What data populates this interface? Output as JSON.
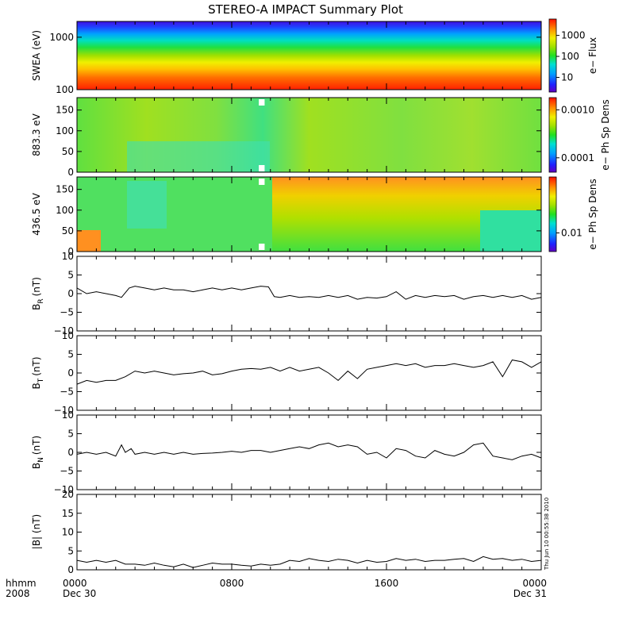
{
  "title": "STEREO-A IMPACT Summary Plot",
  "timestamp": "Thu Jun 10 00:55:38 2010",
  "x_axis": {
    "corner_labels": [
      "hhmm",
      "2008"
    ],
    "ticks": [
      {
        "hours": 0,
        "lines": [
          "0000",
          "Dec 30"
        ]
      },
      {
        "hours": 8,
        "lines": [
          "0800"
        ]
      },
      {
        "hours": 16,
        "lines": [
          "1600"
        ]
      },
      {
        "hours": 24,
        "lines": [
          "0000",
          "Dec 31"
        ]
      }
    ],
    "range_hours": [
      0,
      24
    ],
    "minor_step_hours": 1
  },
  "chart_data": [
    {
      "type": "heatmap",
      "id": "swea",
      "ylabel": "SWEA (eV)",
      "yscale": "log",
      "ylim": [
        100,
        2000
      ],
      "yticks": [
        {
          "v": 100,
          "t": "100"
        },
        {
          "v": 1000,
          "t": "1000"
        }
      ],
      "colorbar": {
        "label": "e− Flux",
        "scale": "log",
        "range": [
          2,
          6000
        ],
        "ticks": [
          {
            "v": 10,
            "t": "10"
          },
          {
            "v": 100,
            "t": "100"
          },
          {
            "v": 1000,
            "t": "1000"
          }
        ]
      },
      "description_values": {
        "top_level_color": "blue",
        "bottom_level_color": "red"
      }
    },
    {
      "type": "heatmap",
      "id": "pad883",
      "ylabel": "883.3 eV",
      "ylim": [
        0,
        180
      ],
      "yticks": [
        {
          "v": 0,
          "t": "0"
        },
        {
          "v": 50,
          "t": "50"
        },
        {
          "v": 100,
          "t": "100"
        },
        {
          "v": 150,
          "t": "150"
        }
      ],
      "colorbar": {
        "label": "e− Ph Sp Dens",
        "scale": "log",
        "range": [
          5e-05,
          0.0018
        ],
        "ticks": [
          {
            "v": 0.0001,
            "t": "0.0001"
          },
          {
            "v": 0.001,
            "t": "0.0010"
          }
        ]
      },
      "data_gap_hours": [
        9.4,
        9.7
      ]
    },
    {
      "type": "heatmap",
      "id": "pad436",
      "ylabel": "436.5 eV",
      "ylim": [
        0,
        180
      ],
      "yticks": [
        {
          "v": 0,
          "t": "0"
        },
        {
          "v": 50,
          "t": "50"
        },
        {
          "v": 100,
          "t": "100"
        },
        {
          "v": 150,
          "t": "150"
        }
      ],
      "colorbar": {
        "label": "e− Ph Sp Dens",
        "scale": "log",
        "range": [
          0.005,
          0.08
        ],
        "ticks": [
          {
            "v": 0.01,
            "t": "0.01"
          }
        ]
      },
      "data_gap_hours": [
        9.4,
        9.7
      ]
    },
    {
      "type": "line",
      "id": "br",
      "ylabel": "B",
      "ylabel_sub": "R",
      "ylabel_unit": "(nT)",
      "ylim": [
        -10,
        10
      ],
      "yticks": [
        {
          "v": -10,
          "t": "−10"
        },
        {
          "v": -5,
          "t": "−5"
        },
        {
          "v": 0,
          "t": "0"
        },
        {
          "v": 5,
          "t": "5"
        },
        {
          "v": 10,
          "t": "10"
        }
      ],
      "x": [
        0,
        0.5,
        1,
        1.5,
        2,
        2.3,
        2.7,
        3,
        3.5,
        4,
        4.5,
        5,
        5.5,
        6,
        6.5,
        7,
        7.5,
        8,
        8.5,
        9,
        9.5,
        9.9,
        10.2,
        10.5,
        11,
        11.5,
        12,
        12.5,
        13,
        13.5,
        14,
        14.5,
        15,
        15.5,
        16,
        16.5,
        17,
        17.5,
        18,
        18.5,
        19,
        19.5,
        20,
        20.5,
        21,
        21.5,
        22,
        22.5,
        23,
        23.5,
        24
      ],
      "y": [
        1.5,
        0,
        0.5,
        0,
        -0.5,
        -1,
        1.5,
        2,
        1.5,
        1,
        1.5,
        1,
        1,
        0.5,
        1,
        1.5,
        1,
        1.5,
        1,
        1.5,
        2,
        1.8,
        -0.8,
        -1,
        -0.5,
        -1,
        -0.8,
        -1,
        -0.5,
        -1,
        -0.5,
        -1.5,
        -1,
        -1.2,
        -0.8,
        0.5,
        -1.5,
        -0.5,
        -1,
        -0.5,
        -0.8,
        -0.5,
        -1.5,
        -0.8,
        -0.5,
        -1,
        -0.5,
        -1,
        -0.5,
        -1.5,
        -1
      ]
    },
    {
      "type": "line",
      "id": "bt",
      "ylabel": "B",
      "ylabel_sub": "T",
      "ylabel_unit": "(nT)",
      "ylim": [
        -10,
        10
      ],
      "yticks": [
        {
          "v": -10,
          "t": "−10"
        },
        {
          "v": -5,
          "t": "−5"
        },
        {
          "v": 0,
          "t": "0"
        },
        {
          "v": 5,
          "t": "5"
        },
        {
          "v": 10,
          "t": "10"
        }
      ],
      "x": [
        0,
        0.5,
        1,
        1.5,
        2,
        2.5,
        3,
        3.5,
        4,
        4.5,
        5,
        5.5,
        6,
        6.5,
        7,
        7.5,
        8,
        8.5,
        9,
        9.5,
        10,
        10.5,
        11,
        11.5,
        12,
        12.5,
        13,
        13.5,
        14,
        14.5,
        15,
        15.5,
        16,
        16.5,
        17,
        17.5,
        18,
        18.5,
        19,
        19.5,
        20,
        20.5,
        21,
        21.5,
        22,
        22.5,
        23,
        23.5,
        24
      ],
      "y": [
        -3,
        -2,
        -2.5,
        -2,
        -2,
        -1,
        0.5,
        0,
        0.5,
        0,
        -0.5,
        -0.2,
        0,
        0.5,
        -0.5,
        -0.2,
        0.5,
        1,
        1.2,
        1,
        1.5,
        0.5,
        1.5,
        0.5,
        1,
        1.5,
        0,
        -2,
        0.5,
        -1.5,
        1,
        1.5,
        2,
        2.5,
        2,
        2.5,
        1.5,
        2,
        2,
        2.5,
        2,
        1.5,
        2,
        3,
        -1,
        3.5,
        3,
        1.5,
        3
      ]
    },
    {
      "type": "line",
      "id": "bn",
      "ylabel": "B",
      "ylabel_sub": "N",
      "ylabel_unit": "(nT)",
      "ylim": [
        -10,
        10
      ],
      "yticks": [
        {
          "v": -10,
          "t": "−10"
        },
        {
          "v": -5,
          "t": "−5"
        },
        {
          "v": 0,
          "t": "0"
        },
        {
          "v": 5,
          "t": "5"
        },
        {
          "v": 10,
          "t": "10"
        }
      ],
      "x": [
        0,
        0.5,
        1,
        1.5,
        2,
        2.3,
        2.5,
        2.8,
        3,
        3.5,
        4,
        4.5,
        5,
        5.5,
        6,
        6.5,
        7,
        7.5,
        8,
        8.5,
        9,
        9.5,
        10,
        10.5,
        11,
        11.5,
        12,
        12.5,
        13,
        13.5,
        14,
        14.5,
        15,
        15.5,
        16,
        16.5,
        17,
        17.5,
        18,
        18.5,
        19,
        19.5,
        20,
        20.5,
        21,
        21.5,
        22,
        22.5,
        23,
        23.5,
        24
      ],
      "y": [
        -0.5,
        0,
        -0.5,
        0,
        -1,
        2,
        0,
        1,
        -0.5,
        0,
        -0.5,
        0,
        -0.5,
        0,
        -0.5,
        -0.3,
        -0.2,
        0,
        0.3,
        0,
        0.5,
        0.5,
        0,
        0.5,
        1,
        1.5,
        1,
        2,
        2.5,
        1.5,
        2,
        1.5,
        -0.5,
        0,
        -1.5,
        1,
        0.5,
        -1,
        -1.5,
        0.5,
        -0.5,
        -1,
        0,
        2,
        2.5,
        -1,
        -1.5,
        -2,
        -1,
        -0.5,
        -1.5
      ]
    },
    {
      "type": "line",
      "id": "bmag",
      "ylabel": "|B| (nT)",
      "ylim": [
        0,
        20
      ],
      "yticks": [
        {
          "v": 0,
          "t": "0"
        },
        {
          "v": 5,
          "t": "5"
        },
        {
          "v": 10,
          "t": "10"
        },
        {
          "v": 15,
          "t": "15"
        },
        {
          "v": 20,
          "t": "20"
        }
      ],
      "x": [
        0,
        0.5,
        1,
        1.5,
        2,
        2.5,
        3,
        3.5,
        4,
        4.5,
        5,
        5.5,
        6,
        6.5,
        7,
        7.5,
        8,
        8.5,
        9,
        9.5,
        10,
        10.5,
        11,
        11.5,
        12,
        12.5,
        13,
        13.5,
        14,
        14.5,
        15,
        15.5,
        16,
        16.5,
        17,
        17.5,
        18,
        18.5,
        19,
        19.5,
        20,
        20.5,
        21,
        21.5,
        22,
        22.5,
        23,
        23.5,
        24
      ],
      "y": [
        2.5,
        2,
        2.5,
        2,
        2.5,
        1.5,
        1.5,
        1.2,
        1.8,
        1.2,
        0.8,
        1.5,
        0.6,
        1.2,
        1.8,
        1.5,
        1.5,
        1.2,
        1,
        1.5,
        1.2,
        1.5,
        2.5,
        2.2,
        3,
        2.5,
        2.2,
        2.8,
        2.5,
        1.8,
        2.5,
        2,
        2.2,
        3,
        2.5,
        2.8,
        2.2,
        2.5,
        2.5,
        2.8,
        3,
        2.2,
        3.5,
        2.8,
        3,
        2.5,
        2.8,
        2.2,
        2.5
      ]
    }
  ]
}
